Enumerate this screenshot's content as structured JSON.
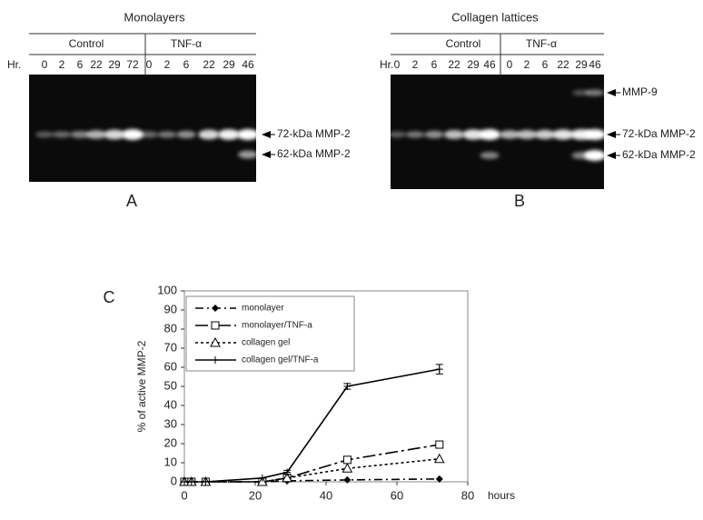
{
  "panels": [
    {
      "label": "A",
      "title": "Monolayers",
      "groups": [
        "Control",
        "TNF-α"
      ],
      "hr_label": "Hr.",
      "lanes": [
        "0",
        "2",
        "6",
        "22",
        "29",
        "72",
        "0",
        "2",
        "6",
        "22",
        "29",
        "46"
      ],
      "bands": [
        "72-kDa MMP-2",
        "62-kDa MMP-2"
      ]
    },
    {
      "label": "B",
      "title": "Collagen lattices",
      "groups": [
        "Control",
        "TNF-α"
      ],
      "hr_label": "Hr.",
      "lanes": [
        "0",
        "2",
        "6",
        "22",
        "29",
        "46",
        "0",
        "2",
        "6",
        "22",
        "29",
        "46"
      ],
      "bands": [
        "MMP-9",
        "72-kDa MMP-2",
        "62-kDa MMP-2"
      ]
    }
  ],
  "chart_data": {
    "type": "line",
    "panel_label": "C",
    "xlabel": "hours",
    "ylabel": "% of active MMP-2",
    "x": [
      0,
      2,
      6,
      22,
      29,
      46,
      72
    ],
    "xlim": [
      0,
      80
    ],
    "xticks": [
      0,
      20,
      40,
      60,
      80
    ],
    "ylim": [
      0,
      100
    ],
    "yticks": [
      0,
      10,
      20,
      30,
      40,
      50,
      60,
      70,
      80,
      90,
      100
    ],
    "series": [
      {
        "name": "monolayer",
        "color": "#000000",
        "marker": "diamond",
        "dash": "dashdot",
        "values": [
          0,
          0,
          0,
          0,
          0.5,
          1,
          1.5
        ]
      },
      {
        "name": "monolayer/TNF-a",
        "color": "#000000",
        "marker": "square",
        "dash": "longdashdot",
        "values": [
          0,
          0,
          0,
          0,
          2,
          11.5,
          19.5
        ]
      },
      {
        "name": "collagen gel",
        "color": "#000000",
        "marker": "triangle",
        "dash": "dotted",
        "values": [
          0,
          0,
          0,
          0,
          2,
          7,
          12
        ]
      },
      {
        "name": "collagen gel/TNF-a",
        "color": "#000000",
        "marker": "plus",
        "dash": "solid",
        "values": [
          0,
          0,
          0,
          2,
          5,
          50,
          59
        ],
        "errors": [
          0,
          0,
          0,
          0,
          1,
          1.5,
          2.5
        ]
      }
    ]
  }
}
